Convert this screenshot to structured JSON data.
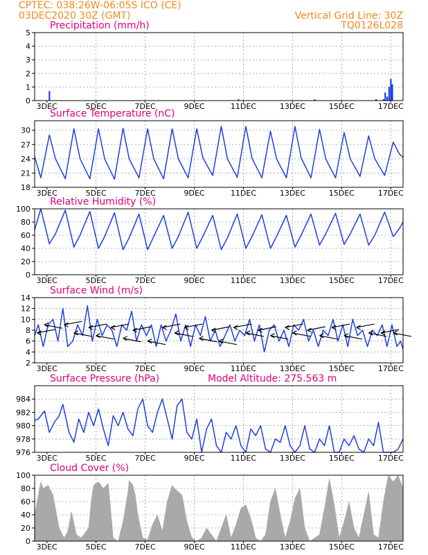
{
  "header": {
    "line1": "CPTEC:  038:26W-06:05S  ICO (CE)",
    "line2": "03DEC2020 30Z (GMT)",
    "vgrid": "Vertical Grid Line: 30Z",
    "code": "TQ0126L028",
    "altitude": "Model Altitude: 275.563 m"
  },
  "colors": {
    "header": "#f08a1c",
    "title": "#e0007a",
    "line": "#1c3fe0",
    "cloud": "#a9a9a9"
  },
  "x_ticks": [
    "3DEC",
    "5DEC",
    "7DEC",
    "9DEC",
    "11DEC",
    "13DEC",
    "15DEC",
    "17DEC"
  ],
  "chart_data": [
    {
      "type": "bar",
      "title": "Precipitation (mm/h)",
      "ylim": [
        0,
        5
      ],
      "yticks": [
        "0",
        "1",
        "2",
        "3",
        "4",
        "5"
      ],
      "x_unit": "days since 03DEC00Z",
      "xlim": [
        0,
        15
      ],
      "x": [
        0.6,
        8.3,
        11.4,
        13.9,
        14.2,
        14.27,
        14.35,
        14.43,
        14.5,
        14.56
      ],
      "values": [
        0.7,
        0.1,
        0.1,
        0.1,
        0.1,
        0.6,
        0.3,
        1.0,
        1.6,
        1.2
      ]
    },
    {
      "type": "line",
      "title": "Surface Temperature (nC)",
      "ylim": [
        18,
        32
      ],
      "yticks": [
        "18",
        "21",
        "24",
        "27",
        "30"
      ],
      "x_unit": "days since 03DEC00Z",
      "xlim": [
        0,
        15
      ],
      "x": [
        0,
        0.25,
        0.6,
        0.85,
        1.25,
        1.6,
        1.85,
        2.25,
        2.6,
        2.85,
        3.25,
        3.6,
        3.85,
        4.25,
        4.6,
        4.85,
        5.25,
        5.6,
        5.85,
        6.25,
        6.6,
        6.85,
        7.25,
        7.6,
        7.85,
        8.25,
        8.6,
        8.85,
        9.25,
        9.6,
        9.85,
        10.25,
        10.6,
        10.85,
        11.25,
        11.6,
        11.85,
        12.25,
        12.6,
        12.85,
        13.25,
        13.6,
        13.85,
        14.25,
        14.6,
        14.85,
        15.0
      ],
      "values": [
        24.5,
        20,
        29,
        24,
        19.8,
        30.3,
        24,
        19.8,
        30.3,
        24,
        19.7,
        30.4,
        24,
        20,
        30.3,
        24,
        19.8,
        30.3,
        24,
        20,
        30.3,
        24.2,
        20.5,
        30.8,
        24,
        20.1,
        30.8,
        24.1,
        20,
        29.8,
        24,
        20,
        30.8,
        24.2,
        20,
        30.2,
        24,
        20,
        29.5,
        24,
        20.3,
        28.8,
        24,
        20.5,
        27.5,
        25,
        24.3
      ]
    },
    {
      "type": "line",
      "title": "Relative Humidity (%)",
      "ylim": [
        0,
        100
      ],
      "yticks": [
        "0",
        "20",
        "40",
        "60",
        "80",
        "100"
      ],
      "x_unit": "days since 03DEC00Z",
      "xlim": [
        0,
        15
      ],
      "x": [
        0,
        0.25,
        0.6,
        0.85,
        1.25,
        1.6,
        1.85,
        2.25,
        2.6,
        2.85,
        3.25,
        3.6,
        3.85,
        4.25,
        4.6,
        4.85,
        5.25,
        5.6,
        5.85,
        6.25,
        6.6,
        6.85,
        7.25,
        7.6,
        7.85,
        8.25,
        8.6,
        8.85,
        9.25,
        9.6,
        9.85,
        10.25,
        10.6,
        10.85,
        11.25,
        11.6,
        11.85,
        12.25,
        12.6,
        12.85,
        13.25,
        13.6,
        13.85,
        14.25,
        14.6,
        14.85,
        15.0
      ],
      "values": [
        68,
        100,
        47,
        62,
        98,
        42,
        60,
        96,
        40,
        58,
        94,
        38,
        56,
        92,
        38,
        58,
        90,
        40,
        58,
        95,
        40,
        58,
        90,
        38,
        56,
        92,
        40,
        58,
        91,
        40,
        58,
        90,
        42,
        60,
        92,
        45,
        62,
        93,
        46,
        62,
        92,
        45,
        60,
        95,
        58,
        70,
        80
      ]
    },
    {
      "type": "line",
      "title": "Surface Wind (m/s)",
      "ylim": [
        2,
        14
      ],
      "yticks": [
        "2",
        "4",
        "6",
        "8",
        "10",
        "12",
        "14"
      ],
      "x_unit": "days since 03DEC00Z",
      "xlim": [
        0,
        15
      ],
      "x": [
        0,
        0.15,
        0.35,
        0.55,
        0.75,
        0.95,
        1.15,
        1.35,
        1.55,
        1.75,
        1.95,
        2.15,
        2.35,
        2.55,
        2.75,
        2.95,
        3.15,
        3.35,
        3.55,
        3.75,
        3.95,
        4.15,
        4.35,
        4.55,
        4.75,
        4.95,
        5.15,
        5.35,
        5.55,
        5.75,
        5.95,
        6.15,
        6.35,
        6.55,
        6.75,
        6.95,
        7.15,
        7.35,
        7.55,
        7.75,
        7.95,
        8.15,
        8.35,
        8.55,
        8.75,
        8.95,
        9.15,
        9.35,
        9.55,
        9.75,
        9.95,
        10.15,
        10.35,
        10.55,
        10.75,
        10.95,
        11.15,
        11.35,
        11.55,
        11.75,
        11.95,
        12.15,
        12.35,
        12.55,
        12.75,
        12.95,
        13.15,
        13.35,
        13.55,
        13.75,
        13.95,
        14.15,
        14.35,
        14.55,
        14.75,
        14.9,
        15.0
      ],
      "values": [
        7,
        9,
        5,
        9,
        10,
        6,
        12,
        5,
        6,
        9,
        7,
        12.5,
        6,
        10,
        7,
        9,
        8,
        5,
        9,
        8,
        11.5,
        6,
        9,
        7,
        9,
        5,
        9,
        6,
        8,
        11,
        6,
        9,
        5,
        9,
        7,
        10.5,
        6,
        8,
        5,
        7,
        9,
        6,
        8,
        7,
        10,
        6,
        9,
        4,
        8,
        9,
        6,
        8,
        5,
        9,
        8,
        10,
        6,
        8,
        5,
        8,
        7,
        10,
        6,
        9,
        5,
        10,
        7,
        8,
        5,
        8,
        7,
        9,
        5,
        9,
        5,
        6,
        4.5
      ],
      "arrows_x": [
        0.1,
        0.4,
        1.2,
        1.6,
        2.2,
        2.5,
        3.1,
        3.6,
        4.0,
        4.6,
        5.2,
        5.7,
        6.1,
        6.7,
        7.2,
        7.5,
        8.1,
        8.6,
        9.1,
        9.6,
        10.2,
        10.5,
        11.1,
        11.6,
        12.1,
        12.6,
        13.1,
        13.6,
        14.1,
        14.6
      ],
      "arrows_y": [
        7.5,
        9,
        9,
        7.5,
        8.5,
        7,
        8.5,
        6.5,
        8,
        6,
        8.5,
        7.5,
        8.5,
        6.5,
        8,
        6,
        8.5,
        7.5,
        8,
        7,
        8.5,
        7.5,
        8,
        7,
        8.5,
        7,
        8.5,
        7.5,
        7.5,
        7.5
      ]
    },
    {
      "type": "line",
      "title": "Surface Pressure (hPa)",
      "ylim": [
        976,
        986
      ],
      "yticks": [
        "976",
        "978",
        "980",
        "982",
        "984"
      ],
      "x_unit": "days since 03DEC00Z",
      "xlim": [
        0,
        15
      ],
      "x": [
        0,
        0.15,
        0.4,
        0.6,
        0.8,
        1.0,
        1.15,
        1.4,
        1.6,
        1.8,
        2.0,
        2.2,
        2.4,
        2.6,
        2.8,
        3.0,
        3.2,
        3.4,
        3.6,
        3.8,
        4.0,
        4.2,
        4.4,
        4.6,
        4.8,
        5.0,
        5.2,
        5.4,
        5.6,
        5.8,
        6.0,
        6.2,
        6.4,
        6.6,
        6.8,
        7.0,
        7.2,
        7.4,
        7.6,
        7.8,
        8.0,
        8.2,
        8.4,
        8.6,
        8.8,
        9.0,
        9.2,
        9.4,
        9.6,
        9.8,
        10.0,
        10.2,
        10.4,
        10.6,
        10.8,
        11.0,
        11.2,
        11.4,
        11.6,
        11.8,
        12.0,
        12.2,
        12.4,
        12.6,
        12.8,
        13.0,
        13.2,
        13.4,
        13.6,
        13.8,
        14.0,
        14.2,
        14.4,
        14.6,
        14.8,
        15.0
      ],
      "values": [
        980.8,
        981,
        982.2,
        979,
        980.5,
        981.5,
        983.2,
        979,
        977.5,
        981,
        979,
        982,
        980,
        982.5,
        979.5,
        977,
        981.5,
        980,
        982,
        979.5,
        978.5,
        982.5,
        984,
        980,
        979,
        982,
        984,
        981,
        978,
        983,
        984,
        979,
        978,
        981,
        976,
        979.5,
        981,
        977,
        976,
        979,
        978,
        980,
        977,
        976,
        979.5,
        978.5,
        980,
        976.5,
        976,
        978,
        977.5,
        980,
        977,
        976,
        977,
        980,
        976.5,
        976,
        978,
        977,
        980,
        976,
        976,
        978,
        977,
        978.5,
        976.5,
        976,
        978,
        977,
        980.5,
        976,
        976,
        976,
        976.5,
        978
      ]
    },
    {
      "type": "area",
      "title": "Cloud Cover (%)",
      "ylim": [
        0,
        100
      ],
      "yticks": [
        "0",
        "20",
        "40",
        "60",
        "80",
        "100"
      ],
      "x_unit": "days since 03DEC00Z",
      "xlim": [
        0,
        15
      ],
      "x": [
        0,
        0.1,
        0.25,
        0.35,
        0.55,
        0.75,
        0.85,
        1.0,
        1.2,
        1.35,
        1.5,
        1.7,
        1.9,
        2.2,
        2.3,
        2.4,
        2.6,
        2.8,
        3.0,
        3.2,
        3.4,
        3.6,
        3.8,
        3.85,
        4.0,
        4.1,
        4.2,
        4.4,
        4.6,
        4.8,
        5.0,
        5.2,
        5.4,
        5.6,
        5.7,
        6.0,
        6.2,
        6.4,
        6.6,
        6.8,
        7.0,
        7.2,
        7.4,
        7.6,
        7.8,
        8.0,
        8.2,
        8.4,
        8.6,
        8.8,
        9.0,
        9.2,
        9.4,
        9.6,
        9.8,
        10.0,
        10.2,
        10.4,
        10.6,
        10.8,
        11.0,
        11.2,
        11.4,
        11.6,
        11.8,
        12.0,
        12.2,
        12.4,
        12.6,
        12.8,
        13.0,
        13.2,
        13.4,
        13.6,
        13.8,
        14.0,
        14.2,
        14.4,
        14.6,
        14.8,
        15.0
      ],
      "values": [
        40,
        60,
        90,
        80,
        85,
        70,
        50,
        20,
        5,
        15,
        45,
        10,
        5,
        20,
        60,
        85,
        90,
        80,
        88,
        5,
        0,
        30,
        75,
        92,
        85,
        70,
        40,
        5,
        2,
        25,
        40,
        15,
        60,
        85,
        80,
        70,
        30,
        5,
        0,
        5,
        20,
        10,
        0,
        20,
        40,
        5,
        25,
        50,
        55,
        35,
        5,
        0,
        10,
        60,
        80,
        40,
        5,
        30,
        65,
        80,
        20,
        0,
        5,
        10,
        50,
        95,
        55,
        5,
        30,
        60,
        20,
        5,
        40,
        75,
        10,
        5,
        60,
        100,
        90,
        100,
        80
      ]
    }
  ]
}
